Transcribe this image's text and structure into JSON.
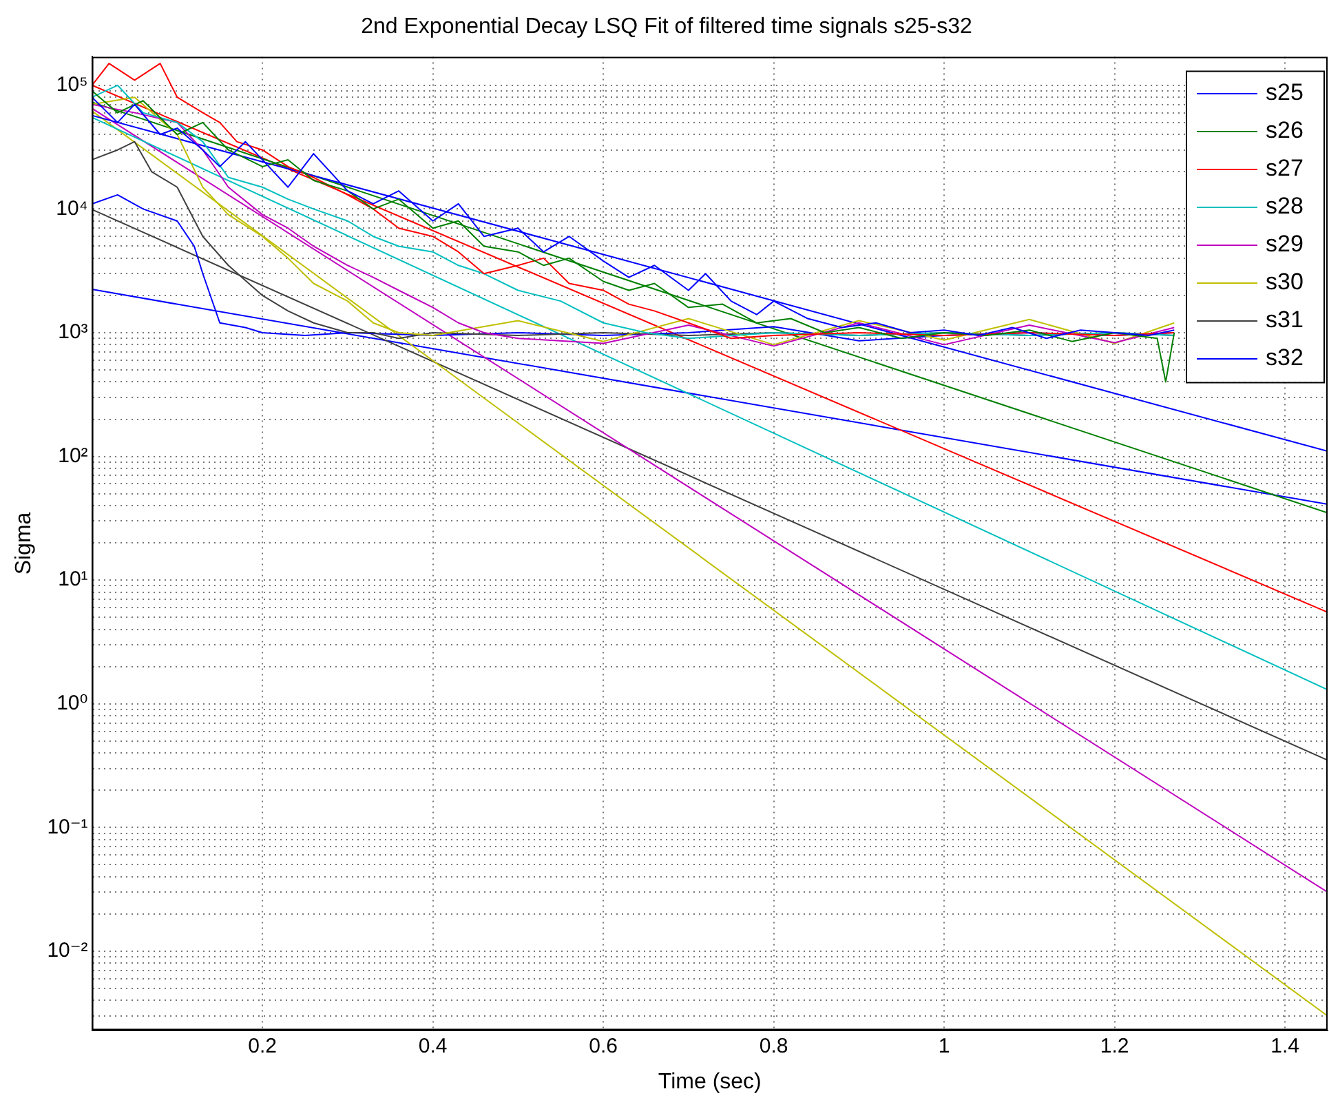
{
  "chart_data": {
    "type": "line",
    "title": "2nd Exponential Decay LSQ Fit of filtered time signals s25-s32",
    "xlabel": "Time (sec)",
    "ylabel": "Sigma",
    "log": "y",
    "grid": true,
    "legend": "top right",
    "xlim": [
      0,
      1.45
    ],
    "xticks": [
      0.2,
      0.4,
      0.6,
      0.8,
      1,
      1.2,
      1.4
    ],
    "ylim": [
      0.0023,
      170000
    ],
    "yticks": [
      {
        "value": 0.003,
        "label": null
      },
      {
        "value": 0.004,
        "label": null
      },
      {
        "value": 0.005,
        "label": null
      },
      {
        "value": 0.006,
        "label": null
      },
      {
        "value": 0.007,
        "label": null
      },
      {
        "value": 0.008,
        "label": null
      },
      {
        "value": 0.009,
        "label": null
      },
      {
        "value": 0.01,
        "label": "10⁻²"
      },
      {
        "value": 0.02,
        "label": null
      },
      {
        "value": 0.03,
        "label": null
      },
      {
        "value": 0.04,
        "label": null
      },
      {
        "value": 0.05,
        "label": null
      },
      {
        "value": 0.06,
        "label": null
      },
      {
        "value": 0.07,
        "label": null
      },
      {
        "value": 0.08,
        "label": null
      },
      {
        "value": 0.09,
        "label": null
      },
      {
        "value": 0.1,
        "label": "10⁻¹"
      },
      {
        "value": 0.2,
        "label": null
      },
      {
        "value": 0.3,
        "label": null
      },
      {
        "value": 0.4,
        "label": null
      },
      {
        "value": 0.5,
        "label": null
      },
      {
        "value": 0.6,
        "label": null
      },
      {
        "value": 0.7,
        "label": null
      },
      {
        "value": 0.8,
        "label": null
      },
      {
        "value": 0.9,
        "label": null
      },
      {
        "value": 1,
        "label": "10⁰"
      },
      {
        "value": 2,
        "label": null
      },
      {
        "value": 3,
        "label": null
      },
      {
        "value": 4,
        "label": null
      },
      {
        "value": 5,
        "label": null
      },
      {
        "value": 6,
        "label": null
      },
      {
        "value": 7,
        "label": null
      },
      {
        "value": 8,
        "label": null
      },
      {
        "value": 9,
        "label": null
      },
      {
        "value": 10,
        "label": "10¹"
      },
      {
        "value": 20,
        "label": null
      },
      {
        "value": 30,
        "label": null
      },
      {
        "value": 40,
        "label": null
      },
      {
        "value": 50,
        "label": null
      },
      {
        "value": 60,
        "label": null
      },
      {
        "value": 70,
        "label": null
      },
      {
        "value": 80,
        "label": null
      },
      {
        "value": 90,
        "label": null
      },
      {
        "value": 100,
        "label": "10²"
      },
      {
        "value": 200,
        "label": null
      },
      {
        "value": 300,
        "label": null
      },
      {
        "value": 400,
        "label": null
      },
      {
        "value": 500,
        "label": null
      },
      {
        "value": 600,
        "label": null
      },
      {
        "value": 700,
        "label": null
      },
      {
        "value": 800,
        "label": null
      },
      {
        "value": 900,
        "label": null
      },
      {
        "value": 1000,
        "label": "10³"
      },
      {
        "value": 2000,
        "label": null
      },
      {
        "value": 3000,
        "label": null
      },
      {
        "value": 4000,
        "label": null
      },
      {
        "value": 5000,
        "label": null
      },
      {
        "value": 6000,
        "label": null
      },
      {
        "value": 7000,
        "label": null
      },
      {
        "value": 8000,
        "label": null
      },
      {
        "value": 9000,
        "label": null
      },
      {
        "value": 10000,
        "label": "10⁴"
      },
      {
        "value": 20000,
        "label": null
      },
      {
        "value": 30000,
        "label": null
      },
      {
        "value": 40000,
        "label": null
      },
      {
        "value": 50000,
        "label": null
      },
      {
        "value": 60000,
        "label": null
      },
      {
        "value": 70000,
        "label": null
      },
      {
        "value": 80000,
        "label": null
      },
      {
        "value": 90000,
        "label": null
      },
      {
        "value": 100000,
        "label": "10⁵"
      }
    ],
    "series": [
      {
        "name": "s25",
        "color": "#0000ff",
        "x": [
          0,
          0.03,
          0.05,
          0.08,
          0.1,
          0.13,
          0.15,
          0.18,
          0.2,
          0.23,
          0.26,
          0.3,
          0.33,
          0.36,
          0.4,
          0.43,
          0.46,
          0.5,
          0.53,
          0.56,
          0.6,
          0.63,
          0.66,
          0.7,
          0.72,
          0.75,
          0.78,
          0.8,
          0.84,
          0.88,
          0.92,
          0.96,
          1,
          1.04,
          1.08,
          1.12,
          1.16,
          1.2,
          1.24,
          1.27
        ],
        "values": [
          80000,
          50000,
          70000,
          40000,
          45000,
          30000,
          22000,
          35000,
          25000,
          15000,
          28000,
          14000,
          11000,
          14000,
          8000,
          11000,
          6000,
          7000,
          4500,
          6000,
          3800,
          2800,
          3500,
          2200,
          3000,
          1800,
          1400,
          1800,
          1300,
          1100,
          1200,
          1000,
          1050,
          950,
          1100,
          900,
          1050,
          1000,
          950,
          1050
        ]
      },
      {
        "name": "s26",
        "color": "#008000",
        "x": [
          0,
          0.03,
          0.06,
          0.1,
          0.13,
          0.16,
          0.2,
          0.23,
          0.26,
          0.3,
          0.33,
          0.36,
          0.4,
          0.43,
          0.46,
          0.5,
          0.53,
          0.56,
          0.6,
          0.63,
          0.66,
          0.7,
          0.74,
          0.78,
          0.82,
          0.86,
          0.9,
          0.95,
          1,
          1.05,
          1.1,
          1.15,
          1.2,
          1.25,
          1.26,
          1.27
        ],
        "values": [
          90000,
          60000,
          75000,
          40000,
          50000,
          30000,
          22000,
          25000,
          17000,
          14000,
          10000,
          12000,
          7000,
          8000,
          5000,
          4500,
          3500,
          4000,
          2600,
          2200,
          2500,
          1600,
          1700,
          1200,
          1300,
          1000,
          1100,
          900,
          1000,
          950,
          1050,
          850,
          1000,
          900,
          400,
          1000
        ]
      },
      {
        "name": "s27",
        "color": "#ff0000",
        "x": [
          0,
          0.02,
          0.05,
          0.08,
          0.1,
          0.13,
          0.15,
          0.17,
          0.2,
          0.23,
          0.26,
          0.3,
          0.33,
          0.36,
          0.4,
          0.43,
          0.46,
          0.5,
          0.53,
          0.56,
          0.6,
          0.63,
          0.66,
          0.7,
          0.75,
          0.8,
          0.9,
          1,
          1.1,
          1.2,
          1.27
        ],
        "values": [
          100000,
          150000,
          110000,
          150000,
          80000,
          60000,
          50000,
          35000,
          30000,
          22000,
          18000,
          13000,
          10000,
          7000,
          6000,
          4500,
          3000,
          3500,
          4000,
          2500,
          2200,
          1700,
          1500,
          1200,
          900,
          950,
          1000,
          950,
          1000,
          950,
          1000
        ]
      },
      {
        "name": "s28",
        "color": "#00bfbf",
        "x": [
          0,
          0.03,
          0.06,
          0.1,
          0.13,
          0.16,
          0.2,
          0.23,
          0.26,
          0.3,
          0.33,
          0.36,
          0.4,
          0.43,
          0.46,
          0.5,
          0.55,
          0.6,
          0.65,
          0.7,
          0.8,
          0.9,
          1,
          1.1,
          1.2,
          1.27
        ],
        "values": [
          80000,
          100000,
          60000,
          50000,
          35000,
          18000,
          15000,
          12000,
          10000,
          8000,
          6000,
          5000,
          4500,
          3500,
          3000,
          2200,
          1800,
          1200,
          1000,
          900,
          1000,
          950,
          1000,
          950,
          1000,
          950
        ]
      },
      {
        "name": "s29",
        "color": "#bf00bf",
        "x": [
          0,
          0.05,
          0.1,
          0.13,
          0.16,
          0.2,
          0.23,
          0.26,
          0.3,
          0.33,
          0.36,
          0.4,
          0.43,
          0.46,
          0.5,
          0.6,
          0.7,
          0.8,
          0.9,
          1,
          1.1,
          1.2,
          1.27
        ],
        "values": [
          70000,
          60000,
          50000,
          30000,
          15000,
          9000,
          7000,
          5000,
          3500,
          2800,
          2200,
          1600,
          1200,
          1000,
          900,
          820,
          1150,
          780,
          1200,
          800,
          1150,
          830,
          1100
        ]
      },
      {
        "name": "s30",
        "color": "#bfbf00",
        "x": [
          0,
          0.05,
          0.1,
          0.13,
          0.16,
          0.2,
          0.23,
          0.26,
          0.3,
          0.33,
          0.36,
          0.4,
          0.5,
          0.6,
          0.7,
          0.8,
          0.9,
          1,
          1.1,
          1.2,
          1.27
        ],
        "values": [
          70000,
          80000,
          40000,
          15000,
          9000,
          6000,
          4000,
          2500,
          1800,
          1200,
          1000,
          950,
          1250,
          850,
          1300,
          800,
          1250,
          870,
          1280,
          820,
          1200
        ]
      },
      {
        "name": "s31",
        "color": "#404040",
        "x": [
          0,
          0.03,
          0.05,
          0.07,
          0.1,
          0.13,
          0.16,
          0.2,
          0.23,
          0.26,
          0.3,
          0.33,
          0.36,
          0.4,
          0.5,
          0.6,
          0.7,
          0.8,
          0.9,
          1,
          1.1,
          1.2,
          1.27
        ],
        "values": [
          25000,
          30000,
          35000,
          20000,
          15000,
          6000,
          3500,
          2000,
          1500,
          1200,
          1000,
          1000,
          900,
          1000,
          950,
          1000,
          950,
          1000,
          950,
          1000,
          950,
          1000,
          950
        ]
      },
      {
        "name": "s32",
        "color": "#0000ff",
        "x": [
          0,
          0.03,
          0.06,
          0.1,
          0.12,
          0.13,
          0.15,
          0.18,
          0.2,
          0.25,
          0.3,
          0.4,
          0.5,
          0.6,
          0.7,
          0.8,
          0.9,
          1,
          1.1,
          1.2,
          1.27
        ],
        "values": [
          11000,
          13000,
          10000,
          8000,
          5000,
          3000,
          1200,
          1100,
          1000,
          950,
          1000,
          950,
          1000,
          950,
          1000,
          1120,
          860,
          950,
          1000,
          950,
          1000
        ]
      },
      {
        "color": "#0000ff",
        "x": [
          0,
          1.45
        ],
        "values": [
          57000,
          110
        ]
      },
      {
        "color": "#008000",
        "x": [
          0,
          1.45
        ],
        "values": [
          73000,
          35
        ]
      },
      {
        "color": "#ff0000",
        "x": [
          0,
          1.45
        ],
        "values": [
          100000,
          5.5
        ]
      },
      {
        "color": "#00bfbf",
        "x": [
          0,
          1.45
        ],
        "values": [
          55000,
          1.3
        ]
      },
      {
        "color": "#bf00bf",
        "x": [
          0,
          1.45
        ],
        "values": [
          65000,
          0.03
        ]
      },
      {
        "color": "#bfbf00",
        "x": [
          0,
          1.45
        ],
        "values": [
          62000,
          0.003
        ]
      },
      {
        "color": "#404040",
        "x": [
          0,
          1.45
        ],
        "values": [
          9900,
          0.35
        ]
      },
      {
        "color": "#0000ff",
        "x": [
          0,
          1.45
        ],
        "values": [
          2240,
          41
        ]
      }
    ]
  }
}
